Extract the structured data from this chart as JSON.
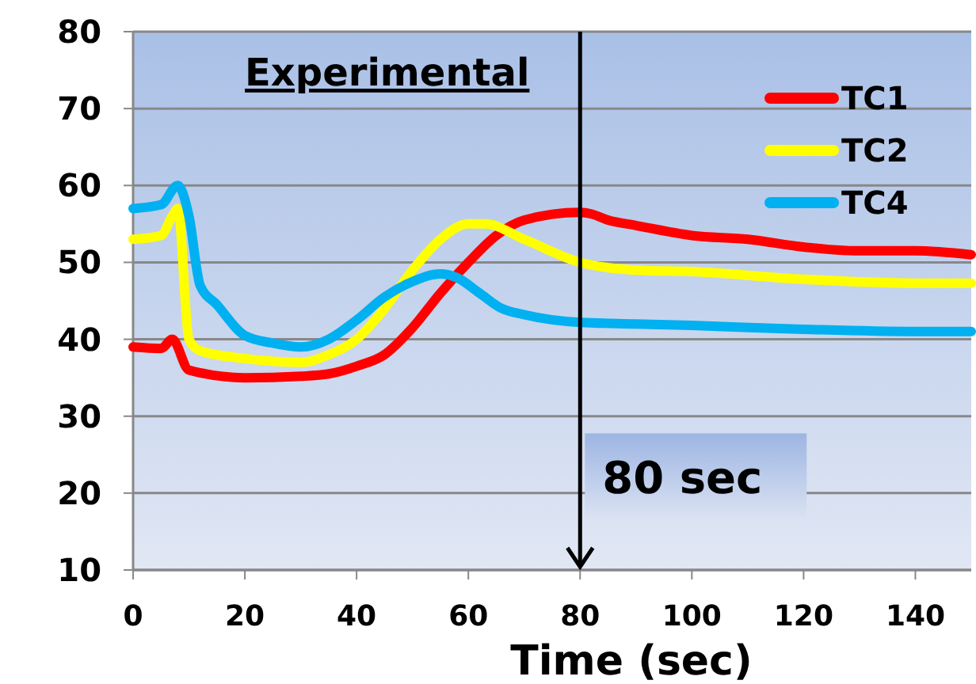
{
  "chart_data": {
    "type": "line",
    "title": "Experimental",
    "xlabel": "Time (sec)",
    "xlim": [
      0,
      150
    ],
    "xticks": [
      0,
      20,
      40,
      60,
      80,
      100,
      120,
      140
    ],
    "ylim": [
      10,
      80
    ],
    "yticks": [
      10,
      20,
      30,
      40,
      50,
      60,
      70,
      80
    ],
    "grid": "y",
    "legend": "top right",
    "line_style": "solid",
    "marker": "none",
    "ref_lines": [
      {
        "axis": "x",
        "value": 80,
        "label": "80 sec",
        "color": "#000000"
      }
    ],
    "series": [
      {
        "name": "TC1",
        "color": "#ff0000",
        "x": [
          0,
          5,
          7,
          10,
          20,
          30,
          35,
          40,
          45,
          50,
          55,
          60,
          65,
          70,
          80,
          82,
          85,
          90,
          100,
          110,
          120,
          130,
          140,
          150
        ],
        "values": [
          39,
          38.8,
          40,
          36,
          35,
          35.2,
          35.5,
          36.5,
          38,
          41.5,
          46,
          50,
          53.5,
          55.5,
          56.5,
          56.3,
          55.5,
          54.8,
          53.5,
          53,
          52,
          51.5,
          51.5,
          51
        ]
      },
      {
        "name": "TC2",
        "color": "#ffff00",
        "x": [
          0,
          5,
          7,
          8,
          10,
          12,
          20,
          30,
          35,
          40,
          45,
          50,
          55,
          60,
          63,
          70,
          80,
          90,
          100,
          120,
          140,
          150
        ],
        "values": [
          53,
          53.5,
          56,
          57,
          40,
          38.5,
          37.5,
          37,
          38,
          40,
          44,
          49,
          53,
          55,
          55,
          53,
          50,
          49,
          48.8,
          47.8,
          47.3,
          47.3
        ]
      },
      {
        "name": "TC4",
        "color": "#00b0f0",
        "x": [
          0,
          5,
          8,
          10,
          12,
          15,
          20,
          25,
          30,
          35,
          40,
          45,
          50,
          55,
          58,
          62,
          66,
          70,
          80,
          90,
          100,
          120,
          140,
          150
        ],
        "values": [
          57,
          57.5,
          60,
          56,
          47,
          44.5,
          40.5,
          39.5,
          39,
          40,
          42.5,
          45.5,
          47.5,
          48.5,
          48,
          46,
          44,
          43.2,
          42.2,
          42,
          41.8,
          41.3,
          41,
          41
        ]
      }
    ]
  }
}
